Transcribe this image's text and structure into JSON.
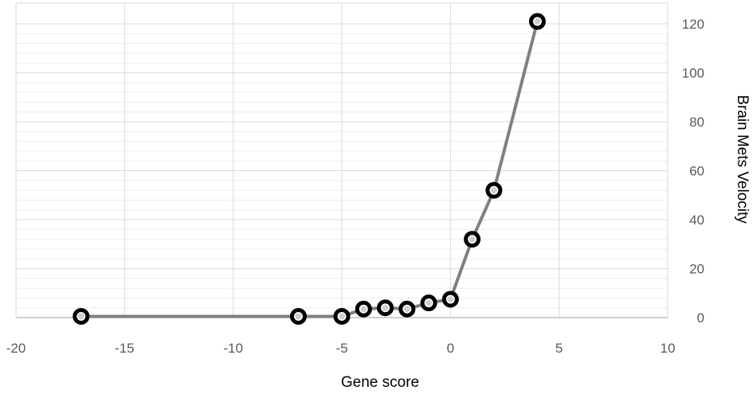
{
  "chart_data": {
    "type": "scatter",
    "title": "",
    "xlabel": "Gene score",
    "ylabel": "Brain Mets Velocity",
    "xlim": [
      -20,
      10
    ],
    "ylim": [
      0,
      120
    ],
    "x_ticks": [
      -20,
      -15,
      -10,
      -5,
      0,
      5,
      10
    ],
    "y_ticks": [
      0,
      20,
      40,
      60,
      80,
      100,
      120
    ],
    "x_tick_labels": [
      "-20",
      "-15",
      "-10",
      "-5",
      "0",
      "5",
      "10"
    ],
    "y_tick_labels": [
      "0",
      "20",
      "40",
      "60",
      "80",
      "100",
      "120"
    ],
    "y_axis_side": "right",
    "grid": true,
    "minor_grid": true,
    "legend": false,
    "line_color": "#808080",
    "marker_color": "#000000",
    "series": [
      {
        "x": [
          -17,
          -7,
          -5,
          -4,
          -3,
          -2,
          -1,
          0,
          1,
          2,
          4
        ],
        "y": [
          0.5,
          0.5,
          0.5,
          3.5,
          4,
          3.5,
          6,
          7.5,
          32,
          52,
          121
        ]
      }
    ]
  }
}
